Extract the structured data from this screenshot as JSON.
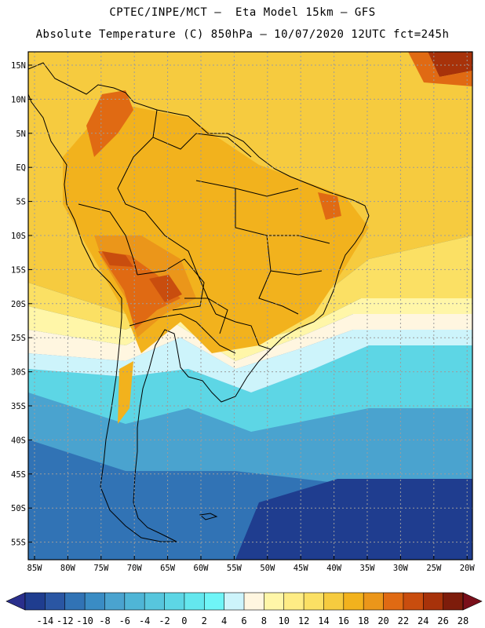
{
  "title_line1": "CPTEC/INPE/MCT –  Eta Model 15km – GFS",
  "title_line2": "Absolute Temperature (C) 850hPa – 10/07/2020 12UTC fct=245h",
  "latitude_labels": [
    "15N",
    "10N",
    "5N",
    "EQ",
    "5S",
    "10S",
    "15S",
    "20S",
    "25S",
    "30S",
    "35S",
    "40S",
    "45S",
    "50S",
    "55S"
  ],
  "longitude_labels": [
    "85W",
    "80W",
    "75W",
    "70W",
    "65W",
    "60W",
    "55W",
    "50W",
    "45W",
    "40W",
    "35W",
    "30W",
    "25W",
    "20W"
  ],
  "colorbar": {
    "labels": [
      "-14",
      "-12",
      "-10",
      "-8",
      "-6",
      "-4",
      "-2",
      "0",
      "2",
      "4",
      "6",
      "8",
      "10",
      "12",
      "14",
      "16",
      "18",
      "20",
      "22",
      "24",
      "26",
      "28"
    ],
    "colors": [
      "#1f3d8f",
      "#2a56a3",
      "#3173b5",
      "#3a8cc4",
      "#4aa3cf",
      "#4fb5d6",
      "#57c6dd",
      "#5dd6e5",
      "#64e7ee",
      "#6ff5f7",
      "#cdf4fb",
      "#fff6e0",
      "#fff6a8",
      "#feec85",
      "#fbe064",
      "#f6cb3f",
      "#f2b21d",
      "#eb961a",
      "#e06a13",
      "#c94d0e",
      "#a7320a",
      "#7d1c0b"
    ],
    "under_color": "#2a2f8c",
    "over_color": "#7a0f1a"
  },
  "field_colors": {
    "cold_deep": "#1f3d8f",
    "cold_mid": "#3173b5",
    "cool": "#4aa3cf",
    "cool_light": "#57c6dd",
    "aqua": "#5dd6e5",
    "ice": "#cdf4fb",
    "cream": "#fff6e0",
    "yellow_pale": "#fff6a8",
    "yellow": "#fbe064",
    "amber": "#f6cb3f",
    "orange": "#f2b21d",
    "orange_deep": "#eb961a",
    "hot": "#e06a13",
    "hotter": "#c94d0e",
    "hottest": "#a7320a",
    "grid": "#9c9c9c",
    "coast": "#000000"
  }
}
